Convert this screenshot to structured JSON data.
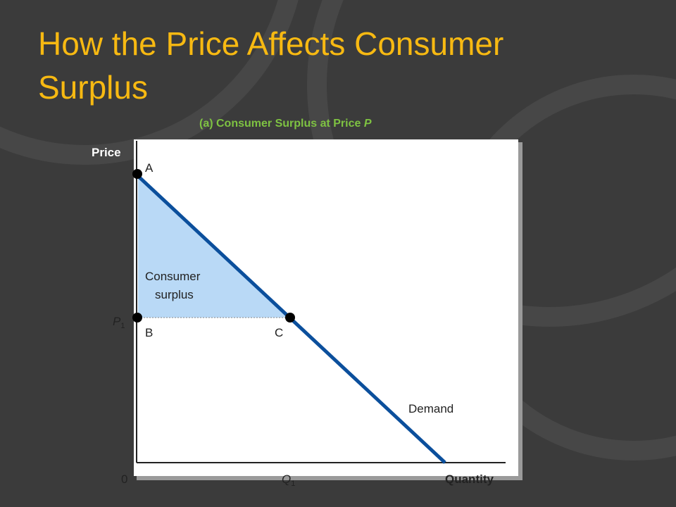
{
  "header": {
    "title_lines": [
      "How the Price Affects Consumer",
      "Surplus"
    ]
  },
  "diagram": {
    "subtitle": {
      "text": "(a) Consumer Surplus at Price",
      "symbol": "P"
    },
    "y_axis_label": "Price",
    "x_axis_label": "Quantity",
    "origin_label": "0",
    "price_label": {
      "symbol": "P",
      "subscript": "1"
    },
    "quantity_label": {
      "symbol": "Q",
      "subscript": "1"
    },
    "points": [
      "A",
      "B",
      "C"
    ],
    "area_label_lines": [
      "Consumer",
      "surplus"
    ],
    "curve_label": "Demand"
  }
}
